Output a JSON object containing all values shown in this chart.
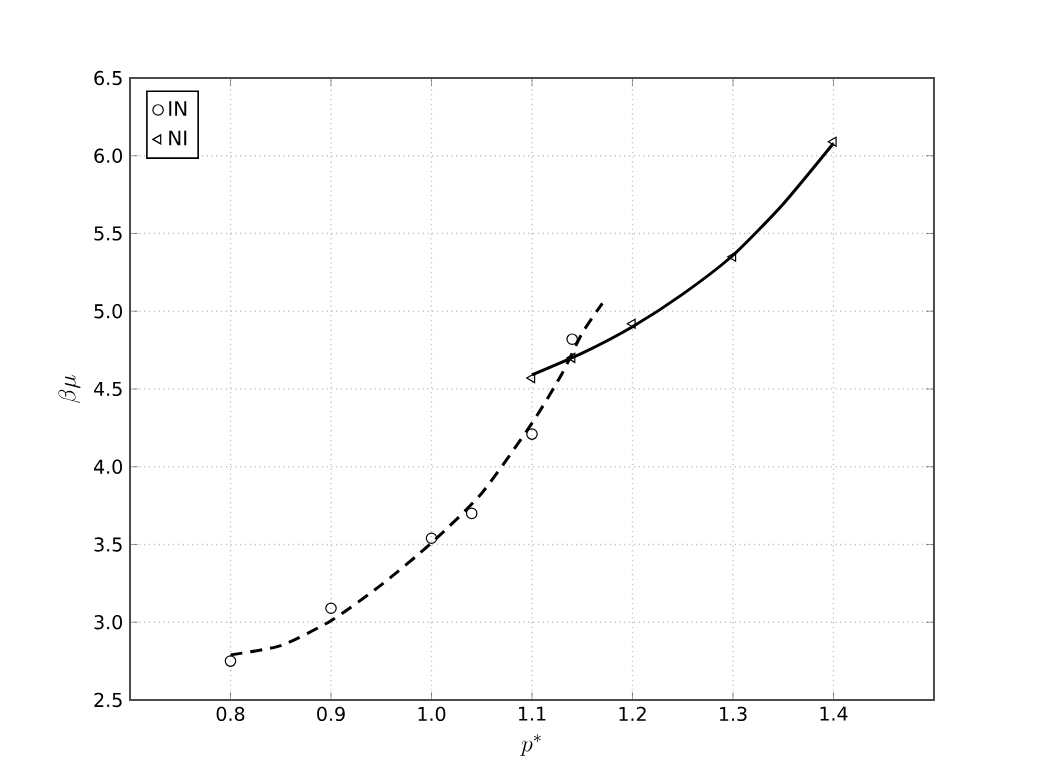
{
  "chart_data": {
    "type": "scatter",
    "xlabel": "p^*",
    "ylabel": "\\beta\\mu",
    "xlim": [
      0.7,
      1.5
    ],
    "ylim": [
      2.5,
      6.5
    ],
    "xticks": [
      {
        "value": 0.8,
        "label": "0.8"
      },
      {
        "value": 0.9,
        "label": "0.9"
      },
      {
        "value": 1.0,
        "label": "1.0"
      },
      {
        "value": 1.1,
        "label": "1.1"
      },
      {
        "value": 1.2,
        "label": "1.2"
      },
      {
        "value": 1.3,
        "label": "1.3"
      },
      {
        "value": 1.4,
        "label": "1.4"
      }
    ],
    "yticks": [
      {
        "value": 2.5,
        "label": "2.5"
      },
      {
        "value": 3.0,
        "label": "3.0"
      },
      {
        "value": 3.5,
        "label": "3.5"
      },
      {
        "value": 4.0,
        "label": "4.0"
      },
      {
        "value": 4.5,
        "label": "4.5"
      },
      {
        "value": 5.0,
        "label": "5.0"
      },
      {
        "value": 5.5,
        "label": "5.5"
      },
      {
        "value": 6.0,
        "label": "6.0"
      },
      {
        "value": 6.5,
        "label": "6.5"
      }
    ],
    "grid": true,
    "legend": "top left",
    "series": [
      {
        "name": "IN",
        "marker": "circle",
        "color": "#000000",
        "x": [
          0.8,
          0.9,
          1.0,
          1.04,
          1.1,
          1.14
        ],
        "values": [
          2.75,
          3.09,
          3.54,
          3.7,
          4.21,
          4.82
        ]
      },
      {
        "name": "NI",
        "marker": "triangle",
        "color": "#000000",
        "x": [
          1.1,
          1.14,
          1.2,
          1.3,
          1.4
        ],
        "values": [
          4.57,
          4.7,
          4.92,
          5.35,
          6.09
        ]
      },
      {
        "type": "line",
        "line_style": "dashed",
        "marker": "none",
        "color": "#000000",
        "x": [
          0.8,
          0.85,
          0.9,
          0.95,
          1.0,
          1.05,
          1.1,
          1.13,
          1.15,
          1.17
        ],
        "values": [
          2.79,
          2.85,
          3.01,
          3.24,
          3.51,
          3.83,
          4.28,
          4.6,
          4.86,
          5.05
        ]
      },
      {
        "type": "line",
        "line_style": "solid",
        "marker": "none",
        "color": "#000000",
        "x": [
          1.1,
          1.15,
          1.2,
          1.25,
          1.3,
          1.35,
          1.4
        ],
        "values": [
          4.59,
          4.73,
          4.9,
          5.11,
          5.36,
          5.69,
          6.08
        ]
      }
    ]
  }
}
